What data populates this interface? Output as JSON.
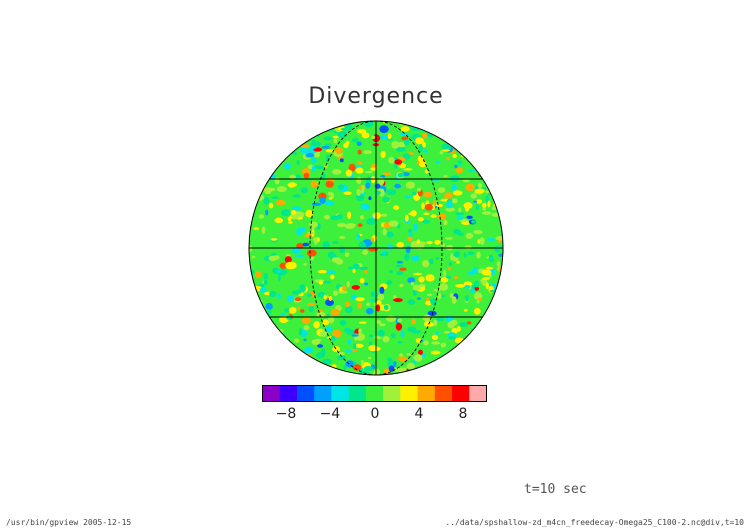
{
  "title": "Divergence",
  "colorbar": {
    "ticks": [
      "−8",
      "−4",
      "0",
      "4",
      "8"
    ],
    "colors": [
      "#8a00c8",
      "#3c00ff",
      "#0050ff",
      "#00a0ff",
      "#00e6e6",
      "#00e68c",
      "#3cf03c",
      "#a0f03c",
      "#fff000",
      "#ffaa00",
      "#ff5000",
      "#ff0000",
      "#ffaaaa"
    ]
  },
  "time_label": "t=10 sec",
  "footer": {
    "left": "/usr/bin/gpview  2005-12-15",
    "right": "../data/spshallow-zd_m4cn_freedecay-Omega25_C100-2.nc@div,t=10"
  },
  "colors": {
    "background_field": "#3cf03c",
    "grid_line": "#000000"
  }
}
